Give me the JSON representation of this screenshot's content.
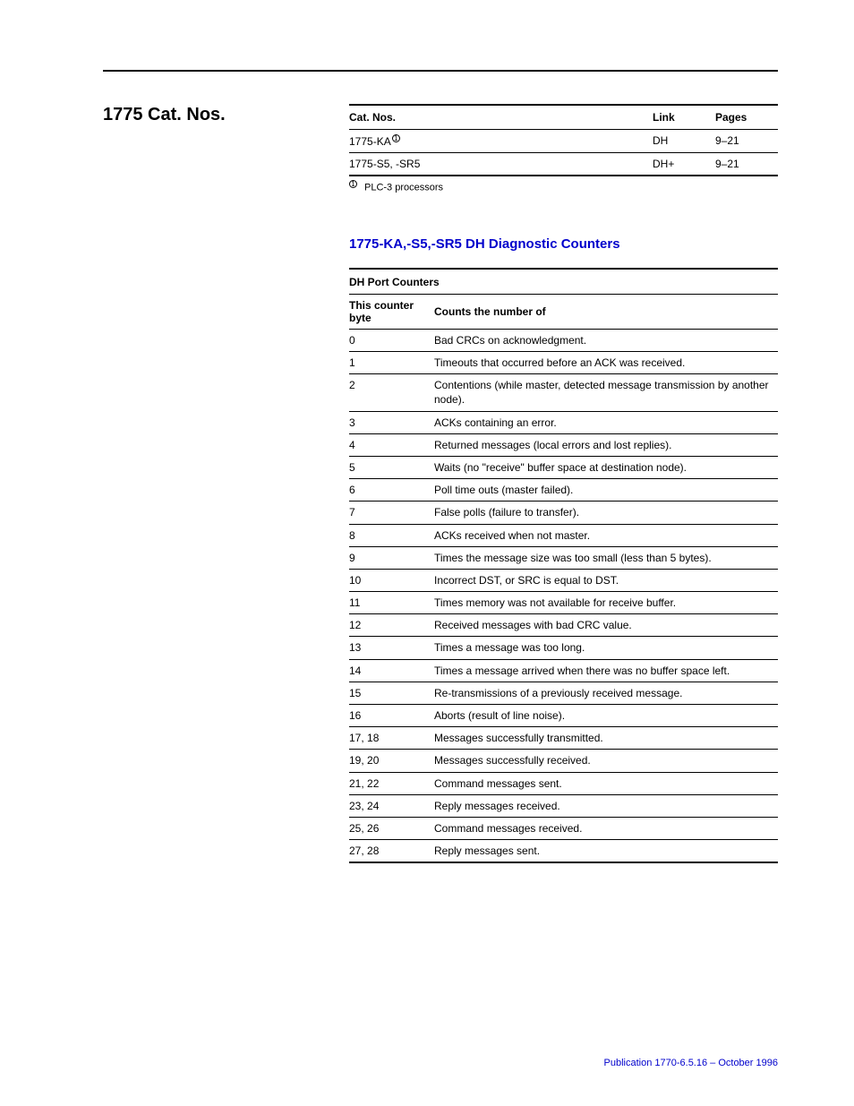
{
  "section_title": "1775 Cat. Nos.",
  "cat_table": {
    "headers": {
      "cat": "Cat. Nos.",
      "link": "Link",
      "pages": "Pages"
    },
    "rows": [
      {
        "cat": "1775-KA",
        "sup": "1",
        "link": "DH",
        "pages": "9–21"
      },
      {
        "cat": "1775-S5, -SR5",
        "sup": "",
        "link": "DH+",
        "pages": "9–21"
      }
    ],
    "footnote_marker": "1",
    "footnote_text": "PLC-3 processors"
  },
  "subsection_title": "1775-KA,-S5,-SR5 DH Diagnostic Counters",
  "counter_table": {
    "group_header": "DH Port Counters",
    "col_headers": {
      "byte": "This counter byte",
      "desc": "Counts the number of"
    },
    "rows": [
      {
        "byte": "0",
        "desc": "Bad CRCs on acknowledgment."
      },
      {
        "byte": "1",
        "desc": "Timeouts that occurred before an ACK was received."
      },
      {
        "byte": "2",
        "desc": "Contentions (while master, detected message transmission by another node)."
      },
      {
        "byte": "3",
        "desc": "ACKs containing an error."
      },
      {
        "byte": "4",
        "desc": "Returned messages (local errors and lost replies)."
      },
      {
        "byte": "5",
        "desc": "Waits (no \"receive\" buffer space at destination node)."
      },
      {
        "byte": "6",
        "desc": "Poll time outs (master failed)."
      },
      {
        "byte": "7",
        "desc": "False polls (failure to transfer)."
      },
      {
        "byte": "8",
        "desc": "ACKs received when not master."
      },
      {
        "byte": "9",
        "desc": "Times the message size was too small (less than 5 bytes)."
      },
      {
        "byte": "10",
        "desc": "Incorrect DST, or SRC is equal to DST."
      },
      {
        "byte": "11",
        "desc": "Times memory was not available for receive buffer."
      },
      {
        "byte": "12",
        "desc": "Received messages with bad CRC value."
      },
      {
        "byte": "13",
        "desc": "Times a message was too long."
      },
      {
        "byte": "14",
        "desc": "Times a message arrived when there was no buffer space left."
      },
      {
        "byte": "15",
        "desc": "Re-transmissions of a previously received message."
      },
      {
        "byte": "16",
        "desc": "Aborts (result of line noise)."
      },
      {
        "byte": "17, 18",
        "desc": "Messages successfully transmitted."
      },
      {
        "byte": "19, 20",
        "desc": "Messages successfully received."
      },
      {
        "byte": "21, 22",
        "desc": "Command messages sent."
      },
      {
        "byte": "23, 24",
        "desc": "Reply messages received."
      },
      {
        "byte": "25, 26",
        "desc": "Command messages received."
      },
      {
        "byte": "27, 28",
        "desc": "Reply messages sent."
      }
    ]
  },
  "footer": "Publication 1770-6.5.16 – October 1996",
  "colors": {
    "link": "#0000cc",
    "text": "#000000",
    "rule": "#000000",
    "background": "#ffffff"
  }
}
